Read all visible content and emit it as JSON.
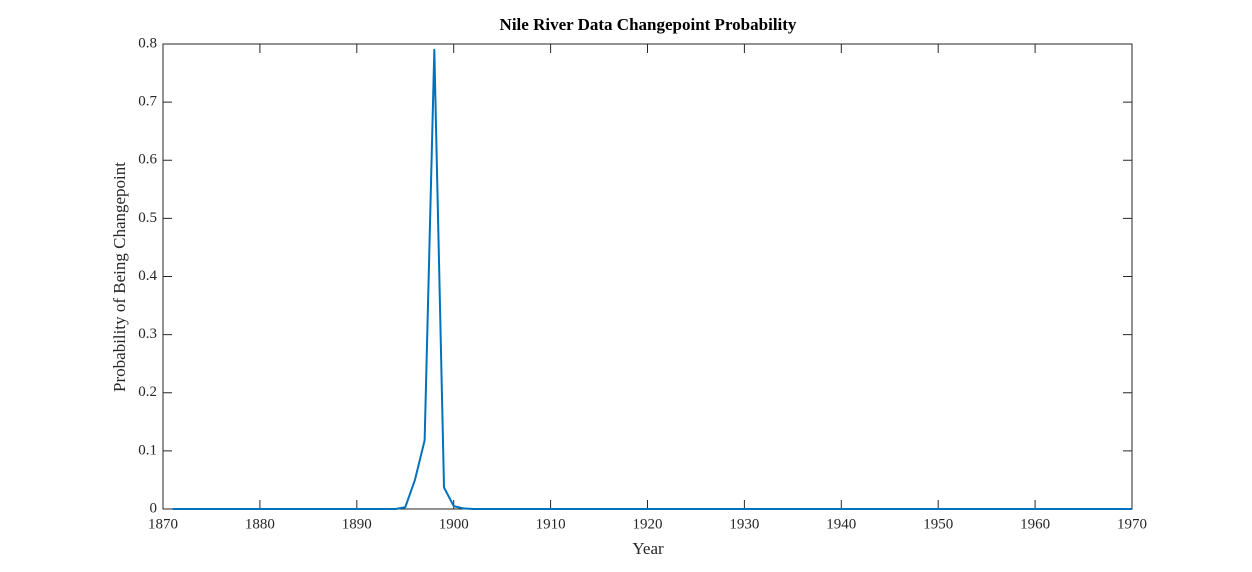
{
  "chart_data": {
    "type": "line",
    "title": "Nile River Data Changepoint Probability",
    "x_label": "Year",
    "y_label": "Probability of Being Changepoint",
    "x": [
      1871,
      1872,
      1873,
      1874,
      1875,
      1876,
      1877,
      1878,
      1879,
      1880,
      1881,
      1882,
      1883,
      1884,
      1885,
      1886,
      1887,
      1888,
      1889,
      1890,
      1891,
      1892,
      1893,
      1894,
      1895,
      1896,
      1897,
      1898,
      1899,
      1900,
      1901,
      1902,
      1903,
      1904,
      1905,
      1906,
      1907,
      1908,
      1909,
      1910,
      1911,
      1912,
      1913,
      1914,
      1915,
      1916,
      1917,
      1918,
      1919,
      1920,
      1921,
      1922,
      1923,
      1924,
      1925,
      1926,
      1927,
      1928,
      1929,
      1930,
      1931,
      1932,
      1933,
      1934,
      1935,
      1936,
      1937,
      1938,
      1939,
      1940,
      1941,
      1942,
      1943,
      1944,
      1945,
      1946,
      1947,
      1948,
      1949,
      1950,
      1951,
      1952,
      1953,
      1954,
      1955,
      1956,
      1957,
      1958,
      1959,
      1960,
      1961,
      1962,
      1963,
      1964,
      1965,
      1966,
      1967,
      1968,
      1969,
      1970
    ],
    "series": [
      {
        "color": "#0072bd",
        "values": [
          0,
          0,
          0,
          0,
          0,
          0,
          0,
          0,
          0,
          0,
          0,
          0,
          0,
          0,
          0,
          0,
          0,
          0,
          0,
          0,
          0,
          0,
          0,
          0,
          0.003,
          0.05,
          0.118,
          0.79,
          0.037,
          0.005,
          0.001,
          0,
          0,
          0,
          0,
          0,
          0,
          0,
          0,
          0,
          0,
          0,
          0,
          0,
          0,
          0,
          0,
          0,
          0,
          0,
          0,
          0,
          0,
          0,
          0,
          0,
          0,
          0,
          0,
          0,
          0,
          0,
          0,
          0,
          0,
          0,
          0,
          0,
          0,
          0,
          0,
          0,
          0,
          0,
          0,
          0,
          0,
          0,
          0,
          0,
          0,
          0,
          0,
          0,
          0,
          0,
          0,
          0,
          0,
          0,
          0,
          0,
          0,
          0,
          0,
          0,
          0,
          0,
          0,
          0
        ]
      }
    ],
    "xlim": [
      1870,
      1970
    ],
    "xticks": [
      1870,
      1880,
      1890,
      1900,
      1910,
      1920,
      1930,
      1940,
      1950,
      1960,
      1970
    ],
    "ylim": [
      0,
      0.8
    ],
    "yticks": [
      0,
      0.1,
      0.2,
      0.3,
      0.4,
      0.5,
      0.6,
      0.7,
      0.8
    ]
  }
}
